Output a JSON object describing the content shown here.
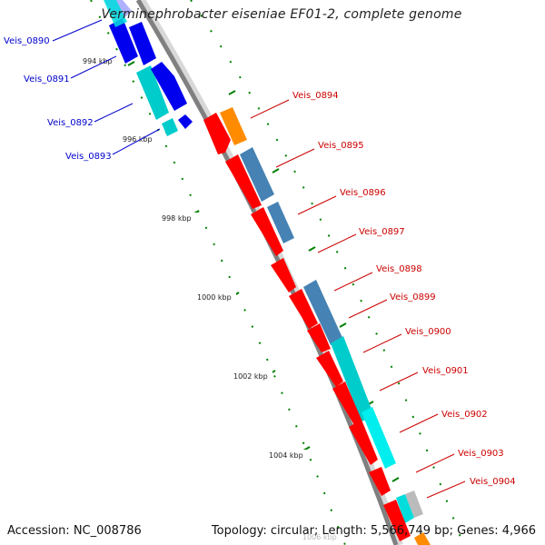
{
  "title": "Verminephrobacter eiseniae EF01-2, complete genome",
  "footer": {
    "accession": "Accession: NC_008786",
    "topology": "Topology: circular; Length: 5,566,749 bp; Genes: 4,966"
  },
  "ticks": [
    "994 kbp",
    "996 kbp",
    "998 kbp",
    "1000 kbp",
    "1002 kbp",
    "1004 kbp",
    "1006 kbp"
  ],
  "genes_left": [
    "Veis_0890",
    "Veis_0891",
    "Veis_0892",
    "Veis_0893"
  ],
  "genes_right": [
    "Veis_0894",
    "Veis_0895",
    "Veis_0896",
    "Veis_0897",
    "Veis_0898",
    "Veis_0899",
    "Veis_0900",
    "Veis_0901",
    "Veis_0902",
    "Veis_0903",
    "Veis_0904"
  ],
  "colors": {
    "left_label": "#0000cc",
    "right_label": "#cc0000",
    "backbone": "#808080",
    "blue_gene": "#0000ee",
    "cyan_gene": "#00dddd",
    "red_gene": "#ff0000",
    "orange_gene": "#ff8c00",
    "steel_gene": "#4682b4",
    "tick_green": "#008000"
  }
}
